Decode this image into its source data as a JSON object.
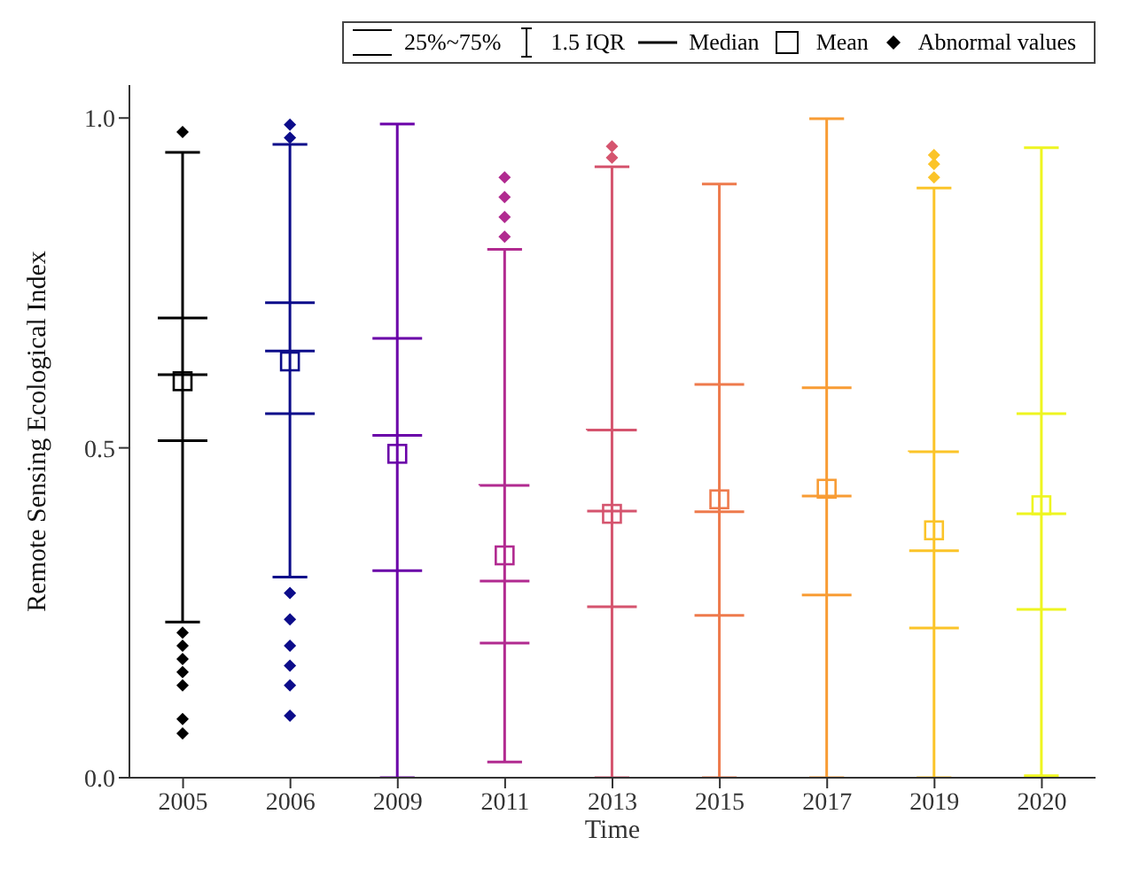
{
  "chart_data": {
    "type": "box",
    "xlabel": "Time",
    "ylabel": "Remote Sensing Ecological Index",
    "categories": [
      "2005",
      "2006",
      "2009",
      "2011",
      "2013",
      "2015",
      "2017",
      "2019",
      "2020"
    ],
    "colors": [
      "#000000",
      "#0c0c8a",
      "#6a00a8",
      "#b12a90",
      "#d5546e",
      "#ee7a4c",
      "#f89c34",
      "#fbc429",
      "#eef520"
    ],
    "boxes": [
      {
        "low": 0.236,
        "q1": 0.511,
        "median": 0.611,
        "q3": 0.697,
        "high": 0.948,
        "mean": 0.601,
        "outliers": [
          0.979,
          0.22,
          0.2,
          0.18,
          0.16,
          0.14,
          0.089,
          0.067
        ]
      },
      {
        "low": 0.304,
        "q1": 0.552,
        "median": 0.647,
        "q3": 0.72,
        "high": 0.96,
        "mean": 0.631,
        "outliers": [
          0.99,
          0.97,
          0.28,
          0.24,
          0.2,
          0.17,
          0.14,
          0.094
        ]
      },
      {
        "low": 0,
        "q1": 0.314,
        "median": 0.519,
        "q3": 0.666,
        "high": 0.991,
        "mean": 0.491
      },
      {
        "low": 0.024,
        "q1": 0.204,
        "median": 0.298,
        "q3": 0.443,
        "high": 0.801,
        "mean": 0.337,
        "outliers": [
          0.82,
          0.85,
          0.88,
          0.91
        ]
      },
      {
        "low": 0,
        "q1": 0.259,
        "median": 0.404,
        "q3": 0.527,
        "high": 0.926,
        "mean": 0.4,
        "outliers": [
          0.94,
          0.957
        ]
      },
      {
        "low": 0,
        "q1": 0.246,
        "median": 0.403,
        "q3": 0.596,
        "high": 0.9,
        "mean": 0.422
      },
      {
        "low": 0,
        "q1": 0.277,
        "median": 0.427,
        "q3": 0.591,
        "high": 0.999,
        "mean": 0.438
      },
      {
        "low": 0,
        "q1": 0.227,
        "median": 0.344,
        "q3": 0.494,
        "high": 0.894,
        "mean": 0.375,
        "outliers": [
          0.91,
          0.93,
          0.944
        ]
      },
      {
        "low": 0.003,
        "q1": 0.255,
        "median": 0.4,
        "q3": 0.552,
        "high": 0.955,
        "mean": 0.413
      }
    ],
    "ylim": [
      0,
      1.05
    ],
    "yticks": [
      {
        "value": 0,
        "label": "0.0"
      },
      {
        "value": 0.5,
        "label": "0.5"
      },
      {
        "value": 1,
        "label": "1.0"
      }
    ],
    "grid": false,
    "annotations": [
      "25%~75%",
      "1.5 IQR",
      "Median",
      "Mean",
      "Abnormal values"
    ]
  }
}
